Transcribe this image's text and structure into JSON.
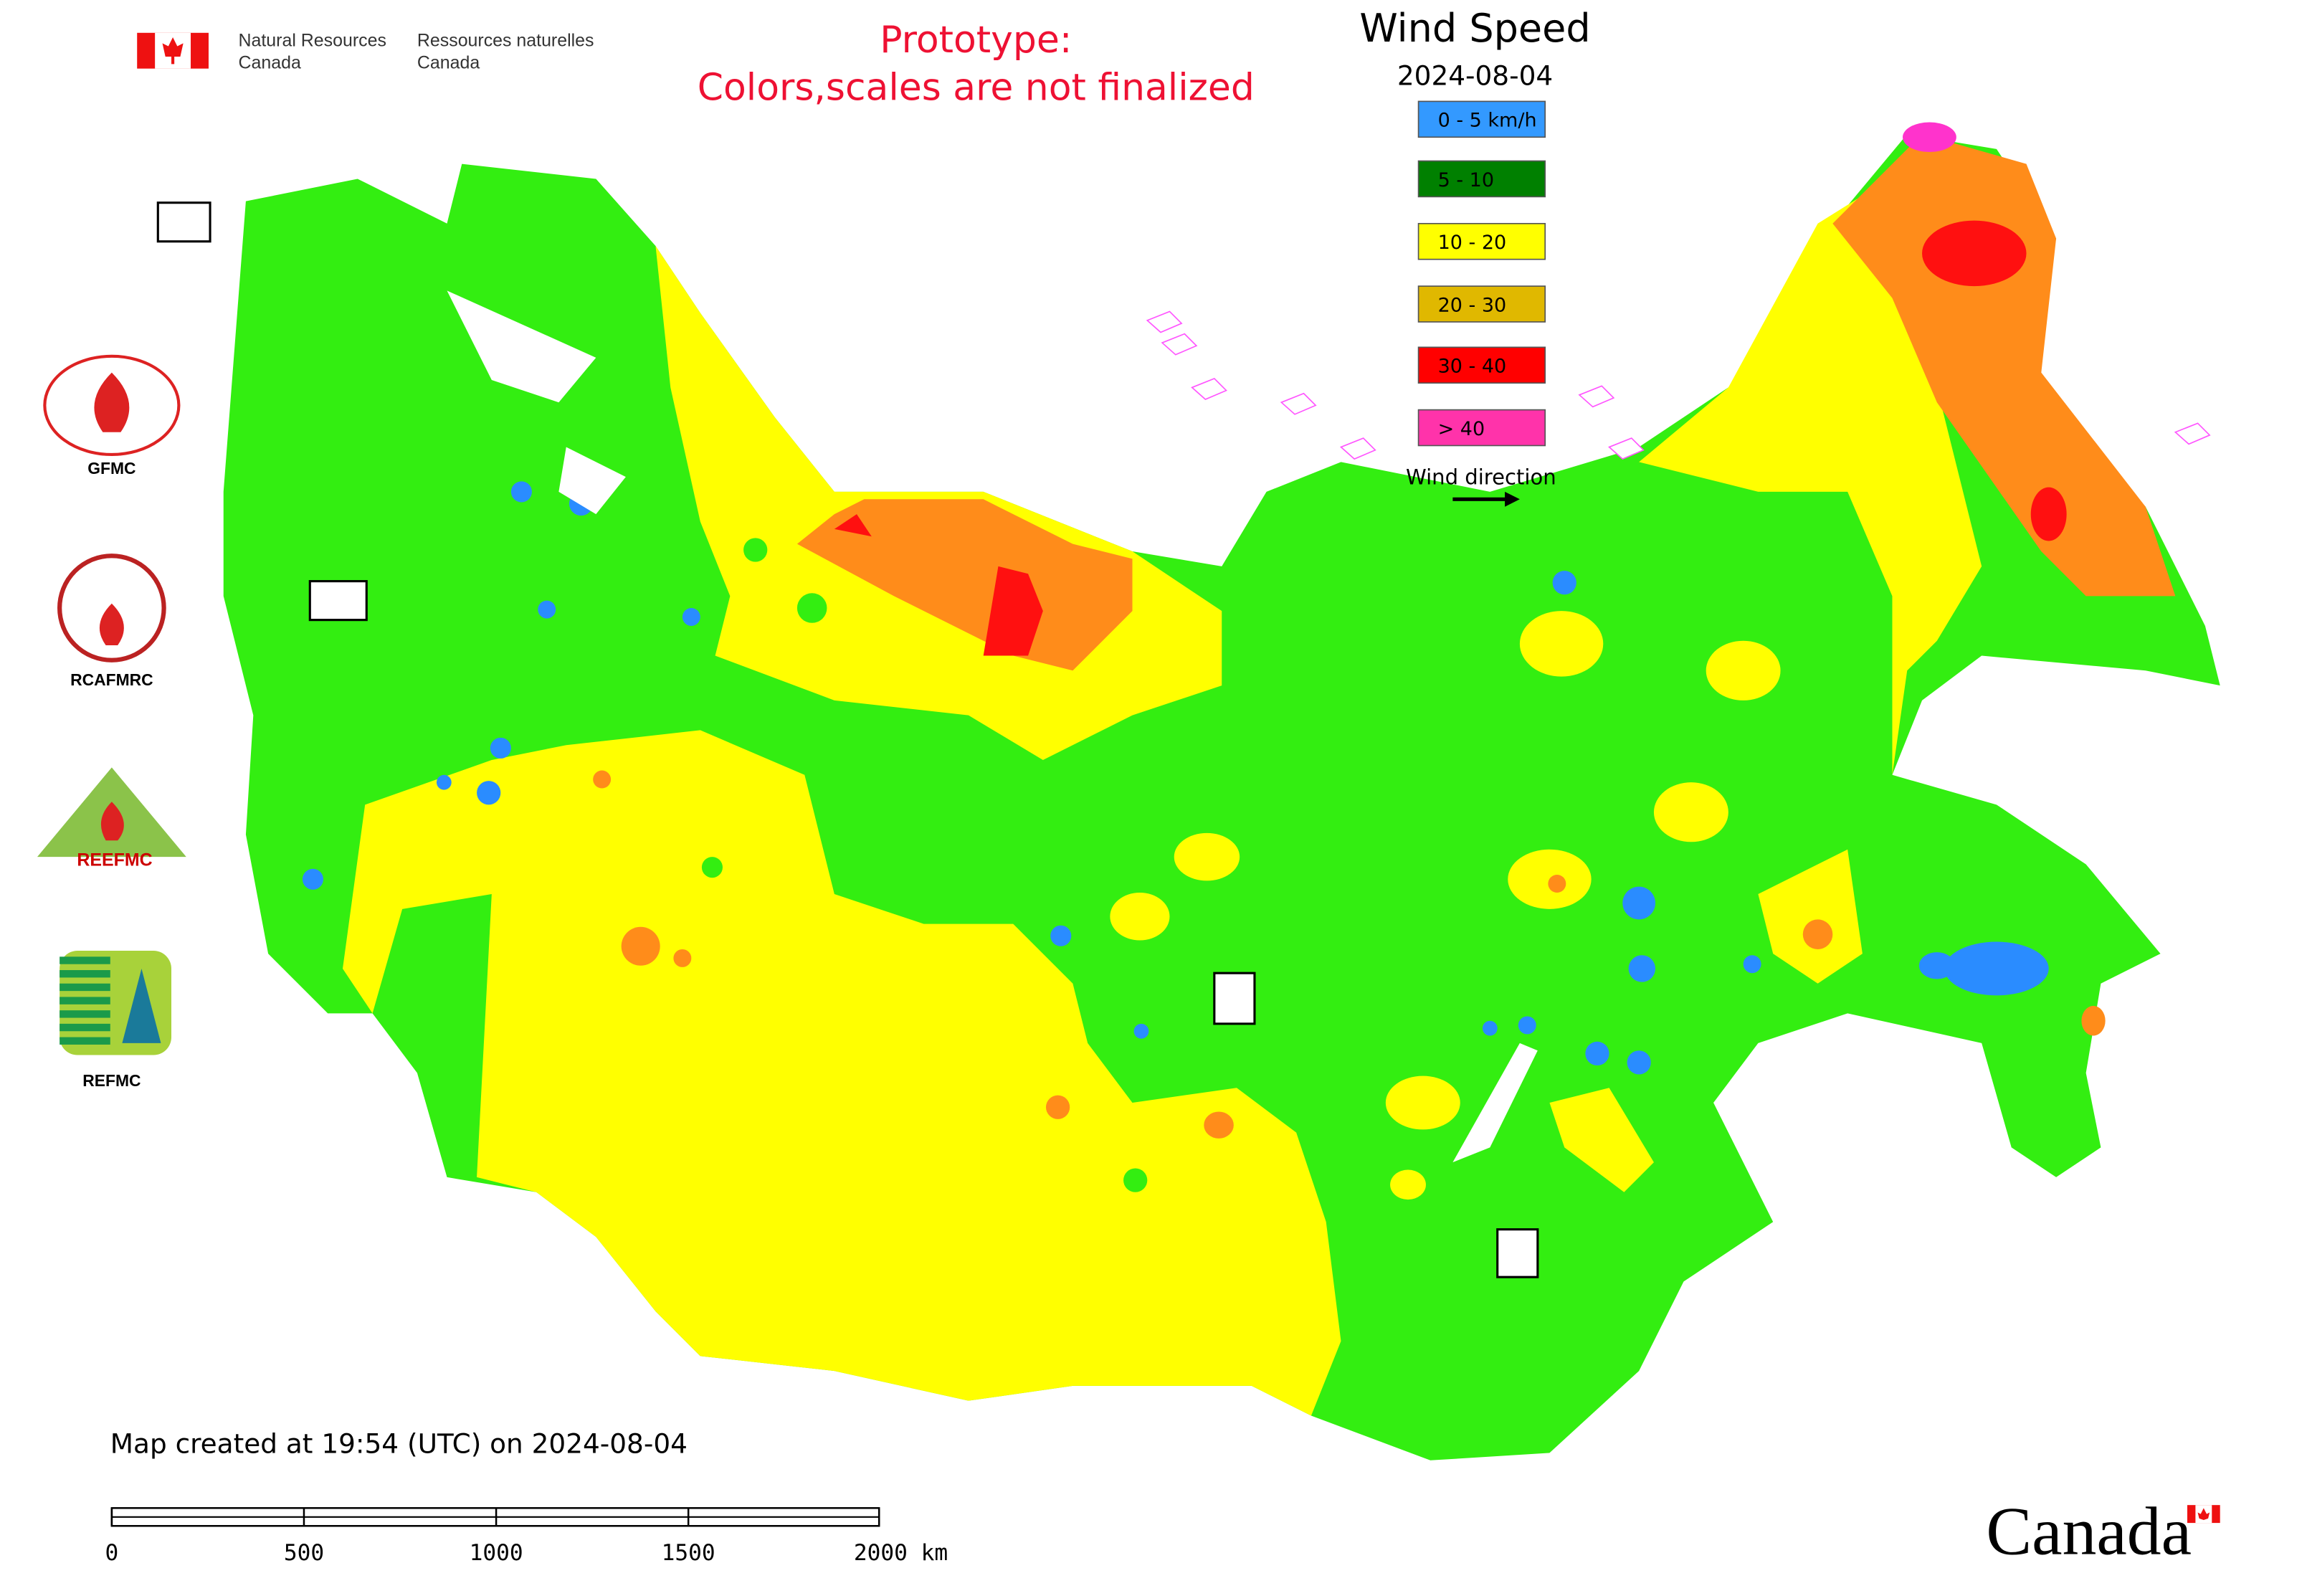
{
  "header": {
    "agency_en_1": "Natural Resources",
    "agency_en_2": "Canada",
    "agency_fr_1": "Ressources naturelles",
    "agency_fr_2": "Canada",
    "notice_1": "Prototype:",
    "notice_2": "Colors,scales are not finalized"
  },
  "legend": {
    "title": "Wind Speed",
    "date": "2024-08-04",
    "items": [
      {
        "label": "0 - 5 km/h",
        "color": "#3399ff"
      },
      {
        "label": "5 - 10",
        "color": "#008000"
      },
      {
        "label": "10 - 20",
        "color": "#ffff00"
      },
      {
        "label": "20 - 30",
        "color": "#e0b800"
      },
      {
        "label": "30 - 40",
        "color": "#ff0000"
      },
      {
        "label": "> 40",
        "color": "#ff33aa"
      }
    ],
    "wind_direction": "Wind direction"
  },
  "logos": [
    "GFMC",
    "RCAFMRC",
    "REEFMC",
    "REFMC"
  ],
  "footer": {
    "created": "Map created at 19:54 (UTC) on 2024-08-04",
    "scale_labels": [
      "0",
      "500",
      "1000",
      "1500",
      "2000 km"
    ],
    "wordmark": "Canada"
  }
}
